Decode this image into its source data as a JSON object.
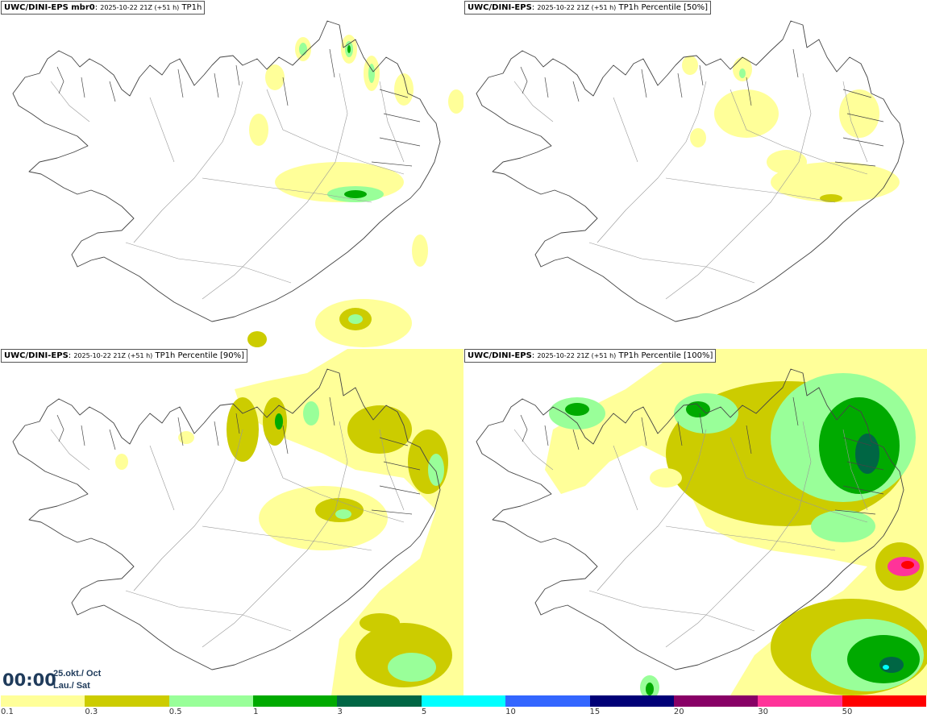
{
  "panels": [
    {
      "source": "UWC/DINI-EPS mbr0",
      "run": "2025-10-22 21Z (+51 h)",
      "label": "TP1h"
    },
    {
      "source": "UWC/DINI-EPS",
      "run": "2025-10-22 21Z (+51 h)",
      "label": "TP1h Percentile [50%]"
    },
    {
      "source": "UWC/DINI-EPS",
      "run": "2025-10-22 21Z (+51 h)",
      "label": "TP1h Percentile [90%]"
    },
    {
      "source": "UWC/DINI-EPS",
      "run": "2025-10-22 21Z (+51 h)",
      "label": "TP1h Percentile [100%]"
    }
  ],
  "valid_time": {
    "time": "00:00",
    "date_line1": "25.okt./ Oct",
    "date_line2": "Lau./ Sat"
  },
  "legend": {
    "colors": [
      "#ffff99",
      "#cccc00",
      "#99ff99",
      "#00aa00",
      "#006644",
      "#00ffff",
      "#3366ff",
      "#000077",
      "#880066",
      "#ff3399",
      "#ff0000"
    ],
    "labels": [
      "0.1",
      "0.3",
      "0.5",
      "1",
      "3",
      "5",
      "10",
      "15",
      "20",
      "30",
      "50"
    ]
  },
  "map_style": {
    "coast_color": "#444444",
    "road_color": "#999999"
  }
}
